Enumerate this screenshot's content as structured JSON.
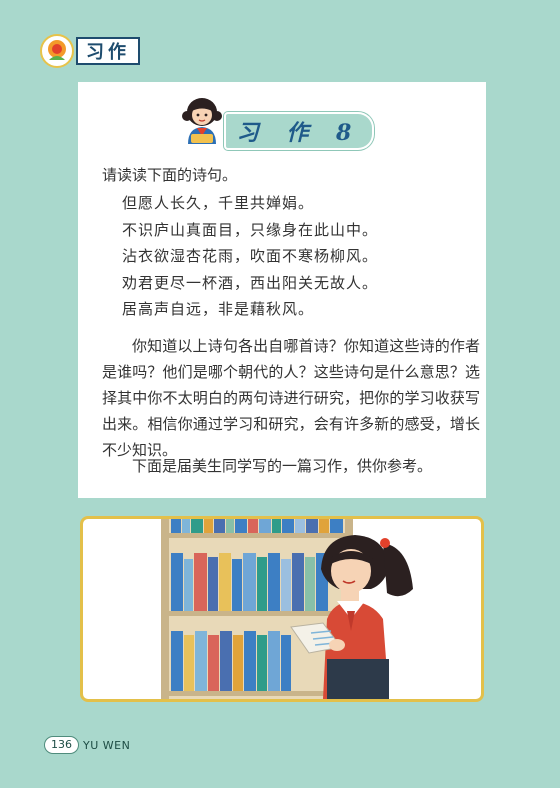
{
  "section_tag": {
    "label": "习作",
    "icon": "sunflower-logo-icon"
  },
  "card": {
    "title": "习 作 8",
    "title_icon": "girl-mascot-icon",
    "intro": "请读读下面的诗句。",
    "poem_lines": [
      "但愿人长久，千里共婵娟。",
      "不识庐山真面目，只缘身在此山中。",
      "沾衣欲湿杏花雨，吹面不寒杨柳风。",
      "劝君更尽一杯酒，西出阳关无故人。",
      "居高声自远，非是藉秋风。"
    ],
    "body": "你知道以上诗句各出自哪首诗？你知道这些诗的作者是谁吗？他们是哪个朝代的人？这些诗句是什么意思？选择其中你不太明白的两句诗进行研究，把你的学习收获写出来。相信你通过学习和研究，会有许多新的感受，增长不少知识。",
    "closing": "下面是届美生同学写的一篇习作，供你参考。"
  },
  "illustration": {
    "subject": "girl-reading-at-bookshelf"
  },
  "colors": {
    "page_bg": "#a9d8cc",
    "title_text": "#1f5a8a",
    "frame_gold": "#e3c04a"
  },
  "footer": {
    "page_number": "136",
    "subject": "YU WEN"
  }
}
